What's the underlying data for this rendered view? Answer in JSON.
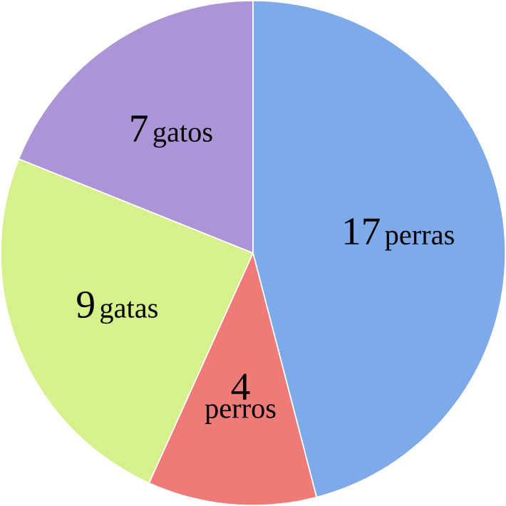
{
  "chart_data": {
    "type": "pie",
    "categories": [
      "perras",
      "perros",
      "gatas",
      "gatos"
    ],
    "values": [
      17,
      4,
      9,
      7
    ],
    "colors": [
      "#7eaaea",
      "#ee7b78",
      "#d6f08c",
      "#ab95d6"
    ],
    "data_labels": true
  }
}
